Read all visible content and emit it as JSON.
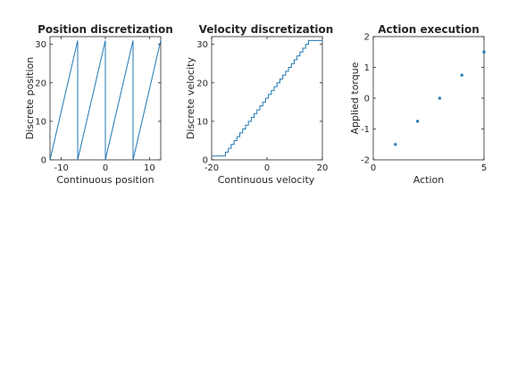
{
  "chart_data": [
    {
      "type": "line",
      "title": "Position discretization",
      "xlabel": "Continuous position",
      "ylabel": "Discrete position",
      "xlim": [
        -12.566,
        12.566
      ],
      "ylim": [
        0,
        32
      ],
      "xticks": [
        -10,
        0,
        10
      ],
      "xtick_labels": [
        "-10",
        "0",
        "10"
      ],
      "yticks": [
        0,
        10,
        20,
        30
      ],
      "ytick_labels": [
        "0",
        "10",
        "20",
        "30"
      ],
      "grid": false,
      "color": "#1f77b4",
      "period": 6.2832,
      "levels": 32,
      "series": [
        {
          "x": [
            -12.566,
            -6.283,
            -6.283,
            0,
            0,
            6.283,
            6.283,
            12.566
          ],
          "y": [
            0,
            31,
            0,
            31,
            0,
            31,
            0,
            31
          ]
        }
      ]
    },
    {
      "type": "line",
      "title": "Velocity discretization",
      "xlabel": "Continuous velocity",
      "ylabel": "Discrete velocity",
      "xlim": [
        -20,
        20
      ],
      "ylim": [
        0,
        32
      ],
      "xticks": [
        -20,
        0,
        20
      ],
      "xtick_labels": [
        "-20",
        "0",
        "20"
      ],
      "yticks": [
        0,
        10,
        20,
        30
      ],
      "ytick_labels": [
        "0",
        "10",
        "20",
        "30"
      ],
      "grid": false,
      "color": "#1f77b4",
      "step": true,
      "series": [
        {
          "x": [
            -20,
            -15,
            -15,
            15,
            15,
            20
          ],
          "y": [
            1,
            1,
            2,
            31,
            31,
            31
          ]
        }
      ]
    },
    {
      "type": "scatter",
      "title": "Action execution",
      "xlabel": "Action",
      "ylabel": "Applied torque",
      "xlim": [
        0,
        5
      ],
      "ylim": [
        -2,
        2
      ],
      "xticks": [
        0,
        5
      ],
      "xtick_labels": [
        "0",
        "5"
      ],
      "yticks": [
        -2,
        -1,
        0,
        1,
        2
      ],
      "ytick_labels": [
        "-2",
        "-1",
        "0",
        "1",
        "2"
      ],
      "grid": false,
      "color": "#1f77b4",
      "series": [
        {
          "x": [
            1,
            2,
            3,
            4,
            5
          ],
          "y": [
            -1.5,
            -0.75,
            0,
            0.75,
            1.5
          ]
        }
      ]
    }
  ]
}
